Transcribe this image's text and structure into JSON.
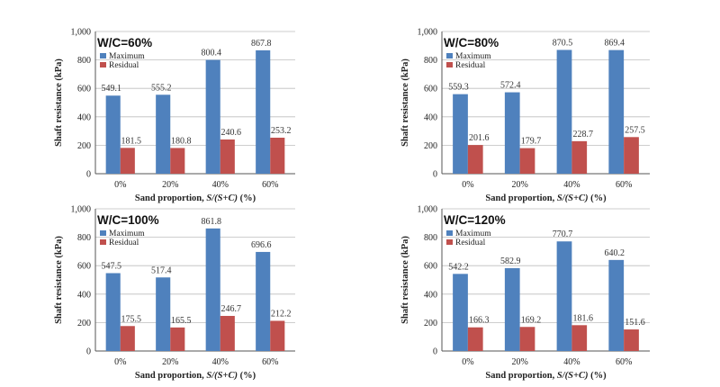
{
  "colors": {
    "maximum": "#4F81BD",
    "residual": "#C0504D"
  },
  "chart_data": [
    {
      "type": "bar",
      "title": "W/C=60%",
      "categories": [
        "0%",
        "20%",
        "40%",
        "60%"
      ],
      "series": [
        {
          "name": "Maximum",
          "values": [
            549.1,
            555.2,
            800.4,
            867.8
          ],
          "labels": [
            "549.1",
            "555.2",
            "800.4",
            "867.8"
          ]
        },
        {
          "name": "Residual",
          "values": [
            181.5,
            180.8,
            240.6,
            253.2
          ],
          "labels": [
            "181.5",
            "180.8",
            "240.6",
            "253.2"
          ]
        }
      ],
      "xlabel_prefix": "Sand proportion, ",
      "xlabel_italic": "S/(S+C)",
      "xlabel_suffix": " (%)",
      "ylabel": "Shaft resistance (kPa)",
      "ylim": [
        0,
        1000
      ],
      "yticks": [
        "0",
        "200",
        "400",
        "600",
        "800",
        "1,000"
      ],
      "legend_position": "top-left",
      "grid": true
    },
    {
      "type": "bar",
      "title": "W/C=80%",
      "categories": [
        "0%",
        "20%",
        "40%",
        "60%"
      ],
      "series": [
        {
          "name": "Maximum",
          "values": [
            559.3,
            572.4,
            870.5,
            869.4
          ],
          "labels": [
            "559.3",
            "572.4",
            "870.5",
            "869.4"
          ]
        },
        {
          "name": "Residual",
          "values": [
            201.6,
            179.7,
            228.7,
            257.5
          ],
          "labels": [
            "201.6",
            "179.7",
            "228.7",
            "257.5"
          ]
        }
      ],
      "xlabel_prefix": "Sand proportion, ",
      "xlabel_italic": "S/(S+C)",
      "xlabel_suffix": " (%)",
      "ylabel": "Shaft resistance (kPa)",
      "ylim": [
        0,
        1000
      ],
      "yticks": [
        "0",
        "200",
        "400",
        "600",
        "800",
        "1,000"
      ],
      "legend_position": "top-left",
      "grid": true
    },
    {
      "type": "bar",
      "title": "W/C=100%",
      "categories": [
        "0%",
        "20%",
        "40%",
        "60%"
      ],
      "series": [
        {
          "name": "Maximum",
          "values": [
            547.5,
            517.4,
            861.8,
            696.6
          ],
          "labels": [
            "547.5",
            "517.4",
            "861.8",
            "696.6"
          ]
        },
        {
          "name": "Residual",
          "values": [
            175.5,
            165.5,
            246.7,
            212.2
          ],
          "labels": [
            "175.5",
            "165.5",
            "246.7",
            "212.2"
          ]
        }
      ],
      "xlabel_prefix": "Sand proportion, ",
      "xlabel_italic": "S/(S+C)",
      "xlabel_suffix": " (%)",
      "ylabel": "Shaft resistance (kPa)",
      "ylim": [
        0,
        1000
      ],
      "yticks": [
        "0",
        "200",
        "400",
        "600",
        "800",
        "1,000"
      ],
      "legend_position": "top-left",
      "grid": true
    },
    {
      "type": "bar",
      "title": "W/C=120%",
      "categories": [
        "0%",
        "20%",
        "40%",
        "60%"
      ],
      "series": [
        {
          "name": "Maximum",
          "values": [
            542.2,
            582.9,
            770.7,
            640.2
          ],
          "labels": [
            "542.2",
            "582.9",
            "770.7",
            "640.2"
          ]
        },
        {
          "name": "Residual",
          "values": [
            166.3,
            169.2,
            181.6,
            151.6
          ],
          "labels": [
            "166.3",
            "169.2",
            "181.6",
            "151.6"
          ]
        }
      ],
      "xlabel_prefix": "Sand proportion, ",
      "xlabel_italic": "S/(S+C)",
      "xlabel_suffix": " (%)",
      "ylabel": "Shaft resistance (kPa)",
      "ylim": [
        0,
        1000
      ],
      "yticks": [
        "0",
        "200",
        "400",
        "600",
        "800",
        "1,000"
      ],
      "legend_position": "top-left",
      "grid": true
    }
  ]
}
